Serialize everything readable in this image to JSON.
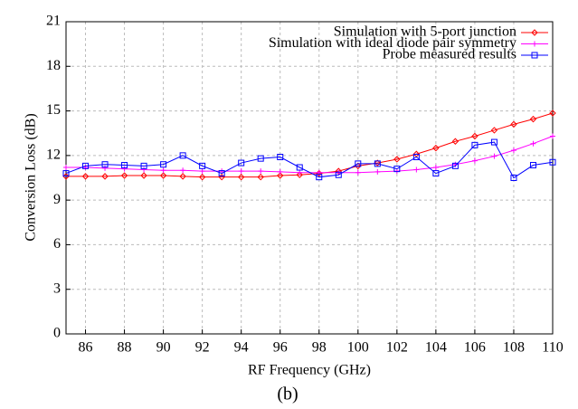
{
  "chart_data": {
    "type": "line",
    "xlabel": "RF Frequency (GHz)",
    "ylabel": "Conversion Loss (dB)",
    "caption": "(b)",
    "x": [
      85,
      86,
      87,
      88,
      89,
      90,
      91,
      92,
      93,
      94,
      95,
      96,
      97,
      98,
      99,
      100,
      101,
      102,
      103,
      104,
      105,
      106,
      107,
      108,
      109,
      110
    ],
    "series": [
      {
        "name": "Simulation with 5-port junction",
        "color": "#ff0000",
        "marker": "diamond",
        "values": [
          10.6,
          10.6,
          10.6,
          10.65,
          10.65,
          10.65,
          10.6,
          10.55,
          10.55,
          10.55,
          10.55,
          10.65,
          10.7,
          10.8,
          10.95,
          11.3,
          11.5,
          11.75,
          12.1,
          12.5,
          12.95,
          13.3,
          13.7,
          14.1,
          14.45,
          14.85
        ]
      },
      {
        "name": "Simulation with ideal diode pair symmetry",
        "color": "#ff00ff",
        "marker": "plus",
        "values": [
          11.2,
          11.2,
          11.15,
          11.1,
          11.05,
          11.0,
          11.0,
          10.95,
          10.95,
          10.95,
          10.95,
          10.9,
          10.85,
          10.85,
          10.85,
          10.85,
          10.9,
          10.95,
          11.05,
          11.2,
          11.4,
          11.65,
          11.95,
          12.35,
          12.8,
          13.3
        ]
      },
      {
        "name": "Probe measured results",
        "color": "#0000ff",
        "marker": "square",
        "values": [
          10.8,
          11.3,
          11.4,
          11.35,
          11.3,
          11.4,
          12.0,
          11.3,
          10.8,
          11.5,
          11.8,
          11.9,
          11.2,
          10.55,
          10.7,
          11.45,
          11.45,
          11.1,
          11.9,
          10.8,
          11.3,
          12.7,
          12.9,
          10.5,
          11.35,
          11.55
        ]
      }
    ],
    "xlim": [
      85,
      110
    ],
    "xticks": [
      86,
      88,
      90,
      92,
      94,
      96,
      98,
      100,
      102,
      104,
      106,
      108,
      110
    ],
    "ylim": [
      0,
      21
    ],
    "yticks": [
      0,
      3,
      6,
      9,
      12,
      15,
      18,
      21
    ],
    "grid": true,
    "legend": "upper right"
  }
}
